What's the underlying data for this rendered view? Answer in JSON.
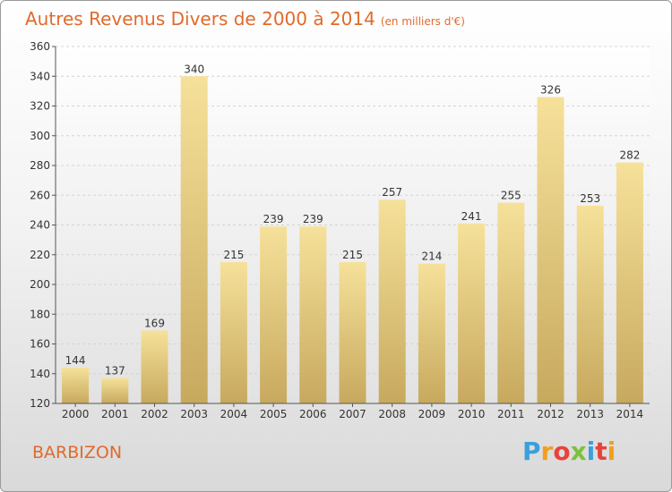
{
  "header": {
    "title": "Autres Revenus Divers de 2000 à 2014",
    "unit": "(en milliers d'€)"
  },
  "city": "BARBIZON",
  "logo": {
    "letters": [
      "P",
      "r",
      "o",
      "x",
      "i",
      "t",
      "i"
    ],
    "colors": [
      "#3aa0dc",
      "#f0a020",
      "#e8423c",
      "#7cc13c",
      "#3aa0dc",
      "#e8423c",
      "#f0a020"
    ]
  },
  "colors": {
    "title": "#e06a2c",
    "bar_light": "#f6e19a",
    "bar_dark": "#c7a95e"
  },
  "chart_data": {
    "type": "bar",
    "title": "Autres Revenus Divers de 2000 à 2014",
    "subtitle": "(en milliers d'€)",
    "xlabel": "",
    "ylabel": "",
    "categories": [
      "2000",
      "2001",
      "2002",
      "2003",
      "2004",
      "2005",
      "2006",
      "2007",
      "2008",
      "2009",
      "2010",
      "2011",
      "2012",
      "2013",
      "2014"
    ],
    "values": [
      144,
      137,
      169,
      340,
      215,
      239,
      239,
      215,
      257,
      214,
      241,
      255,
      326,
      253,
      282
    ],
    "ylim": [
      120,
      360
    ],
    "yticks": [
      120,
      140,
      160,
      180,
      200,
      220,
      240,
      260,
      280,
      300,
      320,
      340,
      360
    ],
    "grid": true
  }
}
